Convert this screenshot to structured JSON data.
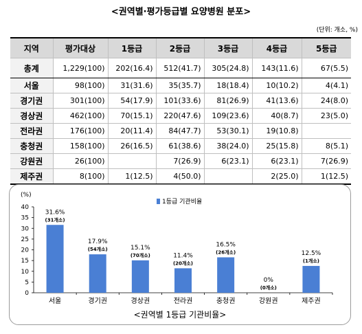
{
  "title": "<권역별·평가등급별 요양병원 분포>",
  "unit_note": "(단위: 개소, %)",
  "table": {
    "headers": [
      "지역",
      "평가대상",
      "1등급",
      "2등급",
      "3등급",
      "4등급",
      "5등급"
    ],
    "rows": [
      {
        "region": "총계",
        "cells": [
          "1,229(100)",
          "202(16.4)",
          "512(41.7)",
          "305(24.8)",
          "143(11.6)",
          "67(5.5)"
        ]
      },
      {
        "region": "서울",
        "cells": [
          "98(100)",
          "31(31.6)",
          "35(35.7)",
          "18(18.4)",
          "10(10.2)",
          "4(4.1)"
        ]
      },
      {
        "region": "경기권",
        "cells": [
          "301(100)",
          "54(17.9)",
          "101(33.6)",
          "81(26.9)",
          "41(13.6)",
          "24(8.0)"
        ]
      },
      {
        "region": "경상권",
        "cells": [
          "462(100)",
          "70(15.1)",
          "220(47.6)",
          "109(23.6)",
          "40(8.7)",
          "23(5.0)"
        ]
      },
      {
        "region": "전라권",
        "cells": [
          "176(100)",
          "20(11.4)",
          "84(47.7)",
          "53(30.1)",
          "19(10.8)",
          ""
        ]
      },
      {
        "region": "충청권",
        "cells": [
          "158(100)",
          "26(16.5)",
          "61(38.6)",
          "38(24.0)",
          "25(15.8)",
          "8(5.1)"
        ]
      },
      {
        "region": "강원권",
        "cells": [
          "26(100)",
          "",
          "7(26.9)",
          "6(23.1)",
          "6(23.1)",
          "7(26.9)"
        ]
      },
      {
        "region": "제주권",
        "cells": [
          "8(100)",
          "1(12.5)",
          "4(50.0)",
          "",
          "2(25.0)",
          "1(12.5)"
        ]
      }
    ]
  },
  "chart_data": {
    "type": "bar",
    "title": "<권역별 1등급 기관비율>",
    "ylabel": "(%)",
    "ylim": [
      0,
      40
    ],
    "yticks": [
      0,
      5,
      10,
      15,
      20,
      25,
      30,
      35,
      40
    ],
    "categories": [
      "서울",
      "경기권",
      "경상권",
      "전라권",
      "충청권",
      "강원권",
      "제주권"
    ],
    "series": [
      {
        "name": "1등급 기관비율",
        "values": [
          31.6,
          17.9,
          15.1,
          11.4,
          16.5,
          0,
          12.5
        ],
        "labels": [
          "31.6%",
          "17.9%",
          "15.1%",
          "11.4%",
          "16.5%",
          "0%",
          "12.5%"
        ],
        "sublabels": [
          "(31개소)",
          "(54개소)",
          "(70개소)",
          "(20개소)",
          "(26개소)",
          "(0개소)",
          "(1개소)"
        ]
      }
    ],
    "legend_position": "top",
    "bar_color": "#4a7fd4"
  }
}
